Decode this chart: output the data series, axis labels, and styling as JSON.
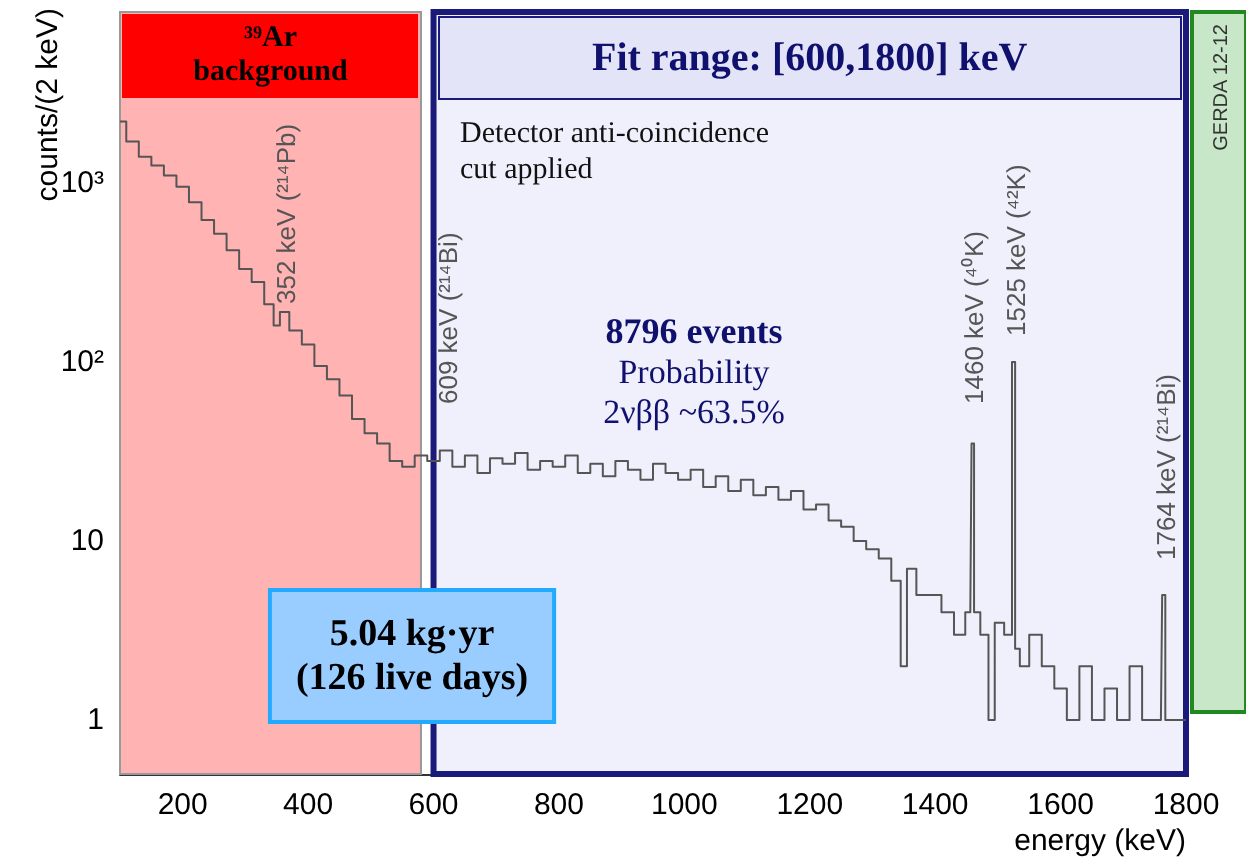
{
  "chart_data": {
    "type": "step",
    "xlabel": "energy (keV)",
    "ylabel": "counts/(2 keV)",
    "log": "y",
    "grid": false,
    "marker": "none",
    "line_style": "solid",
    "xlim": [
      100,
      1800
    ],
    "xticks": [
      200,
      400,
      600,
      800,
      1000,
      1200,
      1400,
      1600,
      1800
    ],
    "ylim": [
      0.5,
      9000
    ],
    "yticks": [
      1,
      10,
      {
        "value": 100,
        "label": "10²"
      },
      {
        "value": 1000,
        "label": "10³"
      }
    ],
    "x": [
      100,
      120,
      140,
      160,
      180,
      200,
      220,
      240,
      260,
      280,
      300,
      320,
      340,
      350,
      360,
      380,
      400,
      420,
      440,
      460,
      480,
      500,
      520,
      540,
      560,
      580,
      600,
      620,
      640,
      660,
      680,
      700,
      720,
      740,
      760,
      780,
      800,
      820,
      840,
      860,
      880,
      900,
      920,
      940,
      960,
      980,
      1000,
      1020,
      1040,
      1060,
      1080,
      1100,
      1120,
      1140,
      1160,
      1180,
      1200,
      1220,
      1240,
      1260,
      1280,
      1300,
      1320,
      1340,
      1350,
      1360,
      1380,
      1400,
      1420,
      1440,
      1456,
      1460,
      1464,
      1480,
      1490,
      1500,
      1520,
      1525,
      1530,
      1540,
      1560,
      1580,
      1600,
      1620,
      1640,
      1660,
      1680,
      1700,
      1720,
      1740,
      1760,
      1764,
      1770,
      1780,
      1800
    ],
    "series": [
      {
        "color": "#555555",
        "values": [
          2200,
          1700,
          1400,
          1250,
          1100,
          950,
          780,
          620,
          520,
          420,
          330,
          280,
          210,
          160,
          190,
          150,
          125,
          95,
          80,
          65,
          48,
          40,
          35,
          28,
          26,
          30,
          28,
          32,
          26,
          30,
          24,
          29,
          27,
          31,
          25,
          28,
          26,
          30,
          24,
          27,
          23,
          28,
          25,
          22,
          27,
          24,
          22,
          25,
          20,
          23,
          19,
          22,
          18,
          20,
          17,
          19,
          15,
          16,
          13,
          12,
          10,
          9,
          8,
          6,
          2,
          7,
          5,
          5,
          4,
          3,
          4,
          35,
          4,
          3,
          1,
          3.5,
          3,
          100,
          2.5,
          2,
          3,
          2,
          1.5,
          1,
          2,
          1,
          1.5,
          1,
          2,
          1,
          1,
          5,
          1,
          1,
          1
        ]
      }
    ],
    "bands": [
      {
        "axis": "x",
        "from": 100,
        "to": 580,
        "label": "³⁹Ar\nbackground",
        "color": "#ffb3b3"
      },
      {
        "axis": "x",
        "from": 600,
        "to": 1800,
        "label": "Fit range: [600,1800] keV",
        "color": "#f0f0fc"
      }
    ],
    "annotations": [
      "Detector anti-coincidence\ncut applied",
      "8796 events",
      "Probability\n2νββ ~63.5%",
      "5.04 kg·yr\n(126 live days)",
      "GERDA 12-12",
      "352 keV (²¹⁴Pb)",
      "609 keV (²¹⁴Bi)",
      "1460 keV (⁴⁰K)",
      "1525 keV (⁴²K)",
      "1764 keV (²¹⁴Bi)"
    ]
  }
}
